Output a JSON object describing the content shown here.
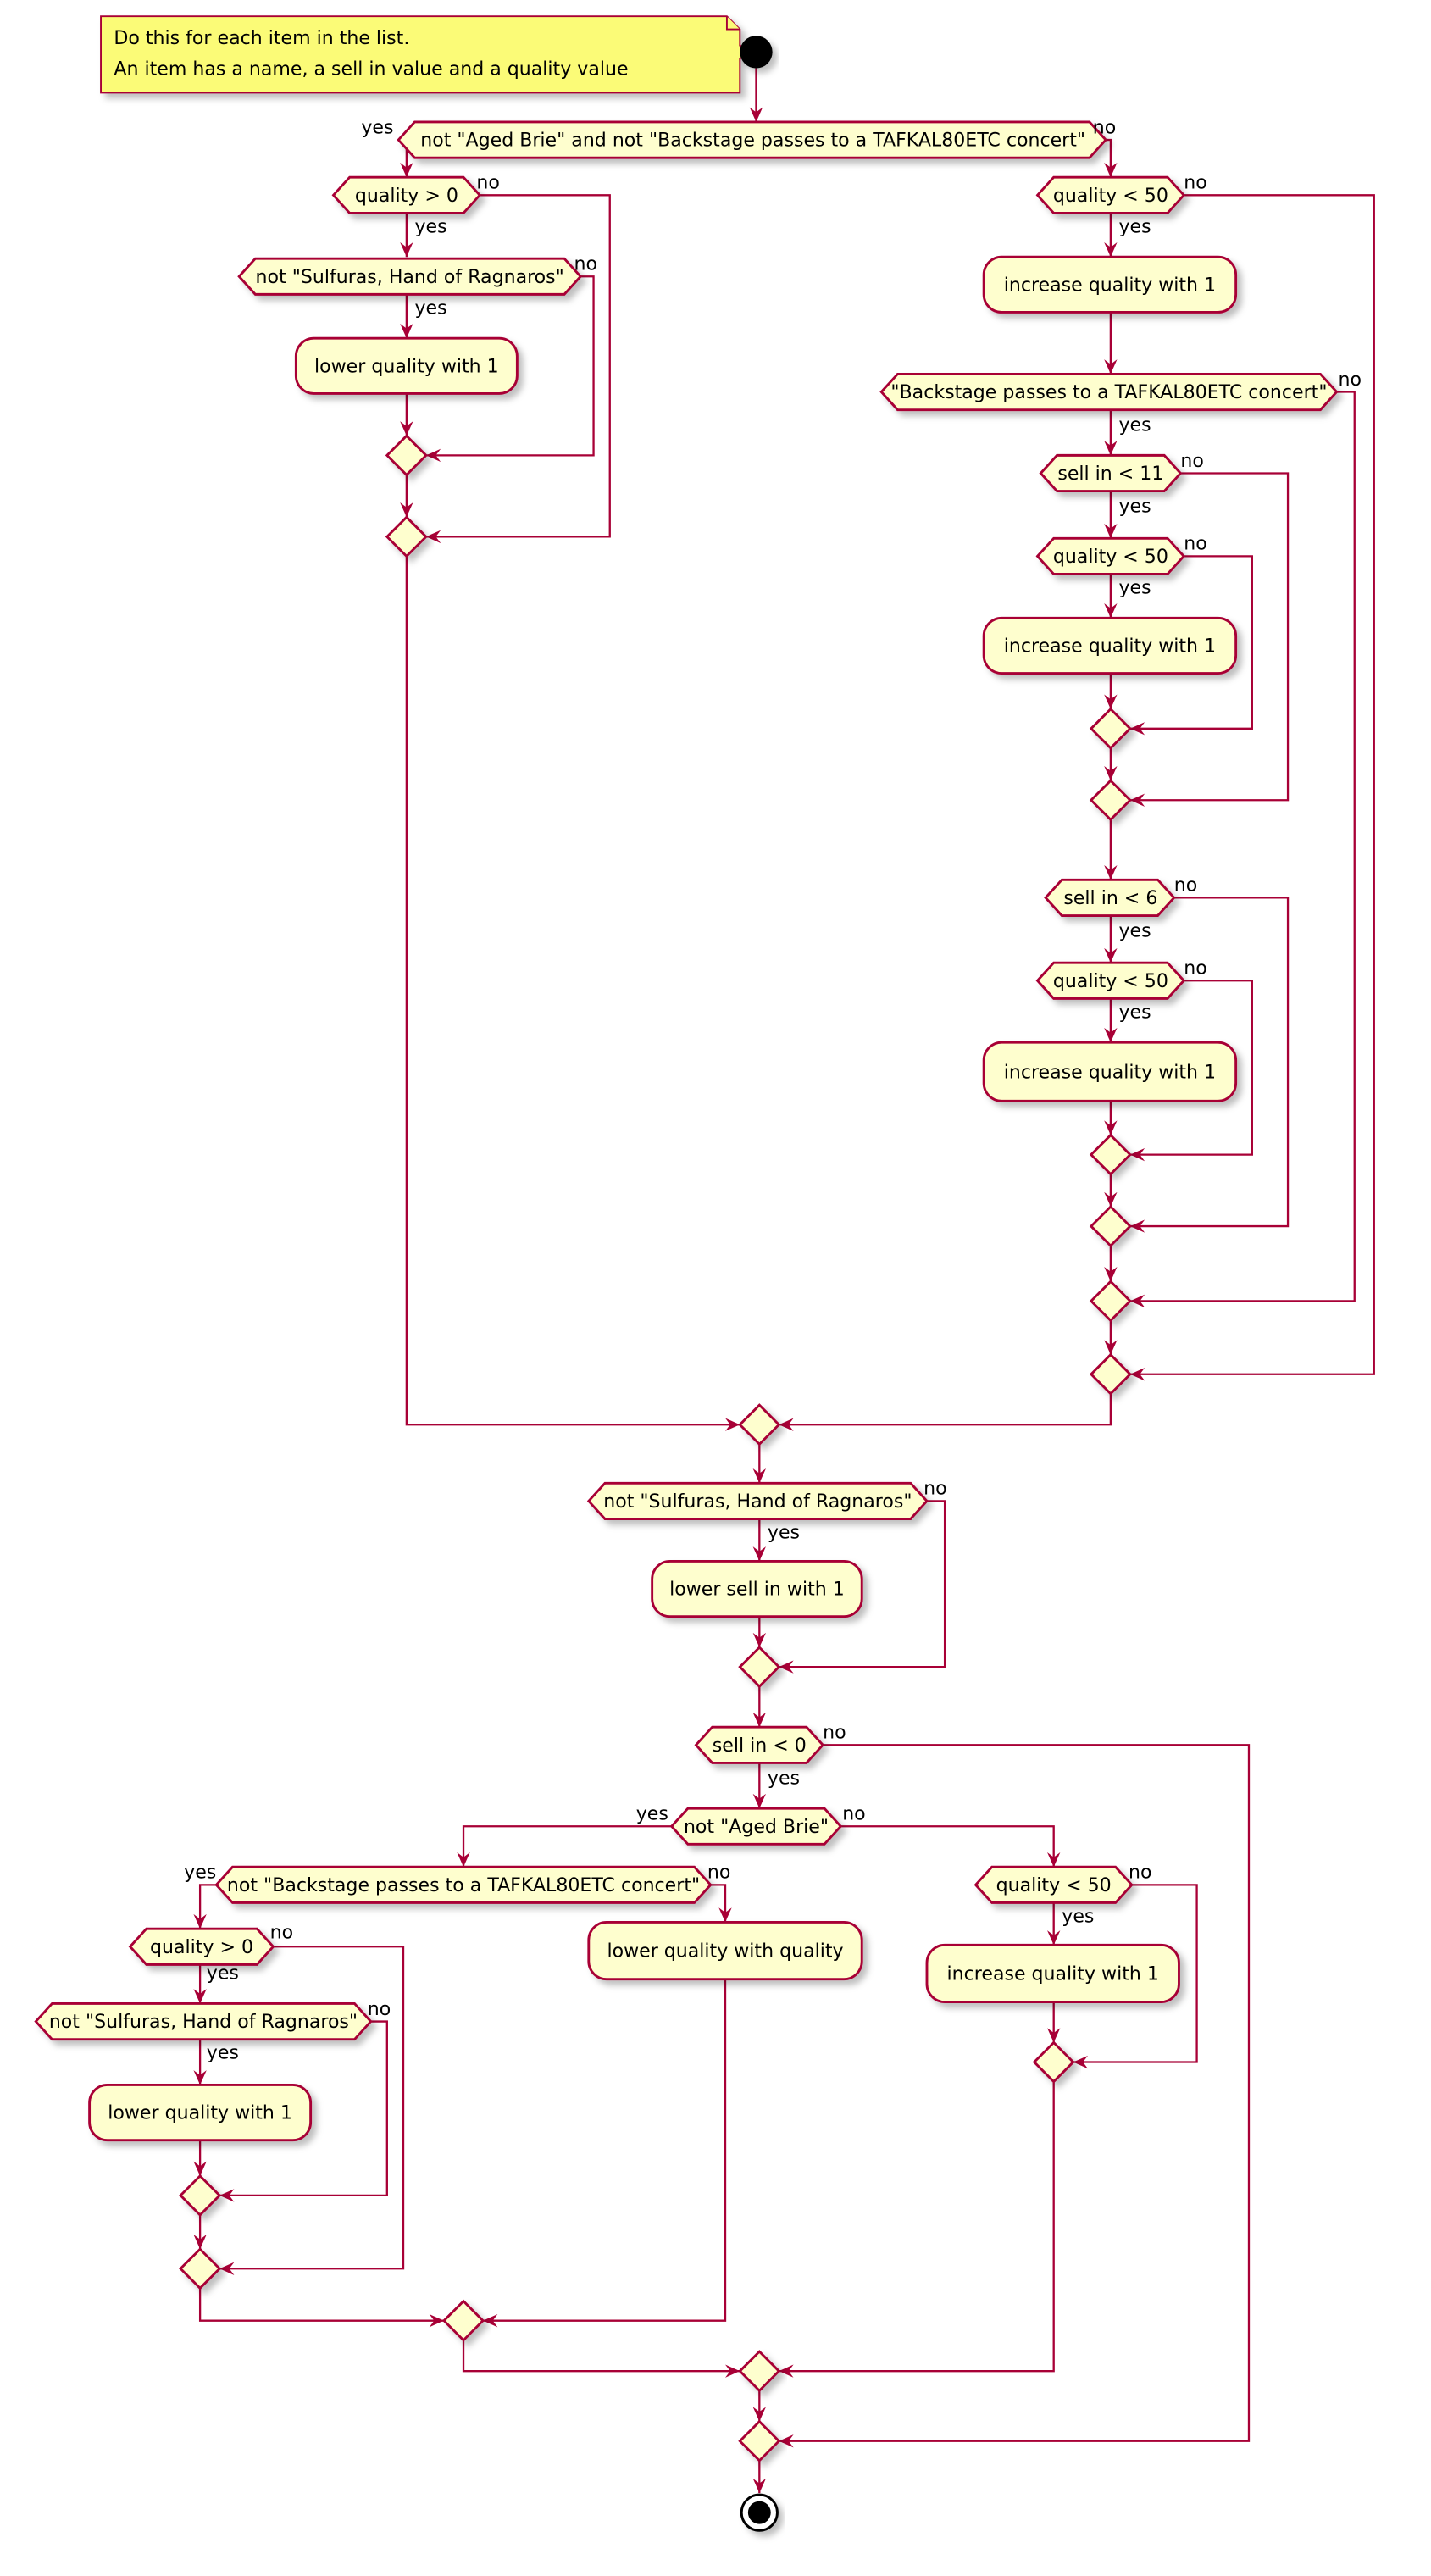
{
  "note": {
    "lines": [
      "Do this for each item in the list.",
      "An item has a name, a sell in value and a quality value"
    ]
  },
  "branch_labels": {
    "yes": "yes",
    "no": "no"
  },
  "nodes": {
    "d_not_brie_backstage": "not \"Aged Brie\" and not \"Backstage passes to a TAFKAL80ETC concert\"",
    "d_quality_gt_0_a": "quality > 0",
    "d_not_sulfuras_a": "not \"Sulfuras, Hand of Ragnaros\"",
    "a_lower_quality_a": "lower quality with 1",
    "d_quality_lt_50_a": "quality < 50",
    "a_increase_a": "increase quality with 1",
    "d_backstage": "\"Backstage passes to a TAFKAL80ETC concert\"",
    "d_sell_in_lt_11": "sell in < 11",
    "d_quality_lt_50_b": "quality < 50",
    "a_increase_b": "increase quality with 1",
    "d_sell_in_lt_6": "sell in < 6",
    "d_quality_lt_50_c": "quality < 50",
    "a_increase_c": "increase quality with 1",
    "d_not_sulfuras_b": "not \"Sulfuras, Hand of Ragnaros\"",
    "a_lower_sell_in": "lower sell in with 1",
    "d_sell_in_lt_0": "sell in < 0",
    "d_not_brie": "not \"Aged Brie\"",
    "d_not_backstage": "not \"Backstage passes to a TAFKAL80ETC concert\"",
    "a_lower_quality_with_quality": "lower quality with quality",
    "d_quality_gt_0_b": "quality > 0",
    "d_not_sulfuras_c": "not \"Sulfuras, Hand of Ragnaros\"",
    "a_lower_quality_b": "lower quality with 1",
    "d_quality_lt_50_d": "quality < 50",
    "a_increase_d": "increase quality with 1"
  },
  "colors": {
    "border": "#A80036",
    "fill": "#FEFECE",
    "note_fill": "#FBFB77"
  }
}
